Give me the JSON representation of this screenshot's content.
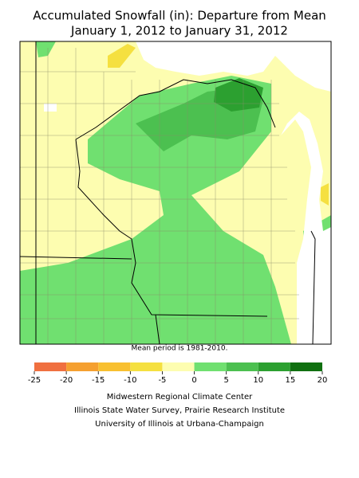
{
  "title": [
    "Accumulated Snowfall (in): Departure from Mean",
    "January 1, 2012 to January 31, 2012"
  ],
  "note": "Mean period is 1981-2010.",
  "legend": {
    "ticks": [
      -25,
      -20,
      -15,
      -10,
      -5,
      0,
      5,
      10,
      15,
      20
    ],
    "colors": [
      "#f07040",
      "#f5a030",
      "#f8c030",
      "#f5e040",
      "#fdfdb0",
      "#70e070",
      "#4cc050",
      "#2ca030",
      "#107010"
    ]
  },
  "credits": [
    "Midwestern Regional Climate Center",
    "Illinois State Water Survey, Prairie Research Institute",
    "University of Illinois at Urbana-Champaign"
  ]
}
